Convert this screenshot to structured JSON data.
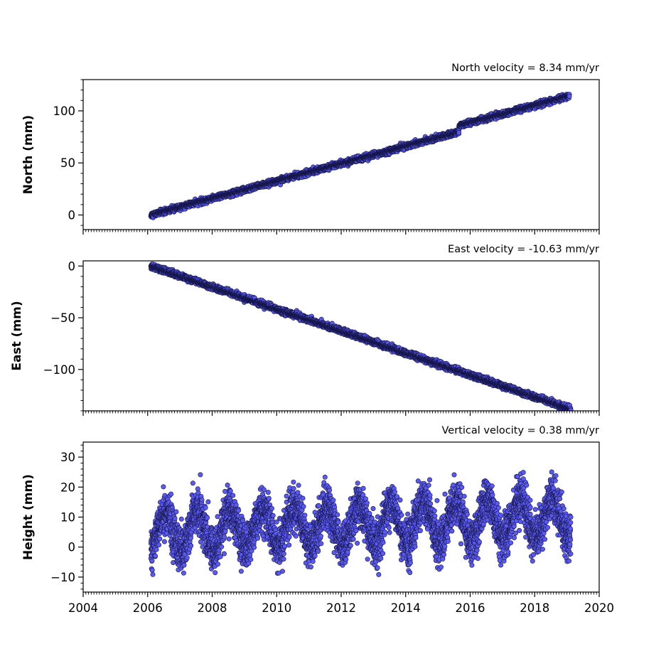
{
  "chart_data": [
    {
      "type": "scatter",
      "ylabel": "North (mm)",
      "annotation": "North velocity = 8.34 mm/yr",
      "xlim": [
        2004,
        2020
      ],
      "ylim": [
        -14,
        130
      ],
      "yticks": [
        0,
        50,
        100
      ],
      "ytick_labels": [
        "0",
        "50",
        "100"
      ],
      "show_x_tick_labels": false,
      "model": {
        "start": 2006.1,
        "end": 2019.08,
        "velocity": 8.34,
        "intercept": 0,
        "offset_epoch": 2015.65,
        "offset": 6,
        "noise": 1.2,
        "seasonal": 0,
        "outlier_rate": 0,
        "outlier_amp": 0,
        "description": "linear trend with coseismic-like jump near 2015.65"
      }
    },
    {
      "type": "scatter",
      "ylabel": "East (mm)",
      "annotation": "East velocity = -10.63 mm/yr",
      "xlim": [
        2004,
        2020
      ],
      "ylim": [
        -140,
        5
      ],
      "yticks": [
        0,
        -50,
        -100
      ],
      "ytick_labels": [
        "0",
        "−50",
        "−100"
      ],
      "show_x_tick_labels": false,
      "model": {
        "start": 2006.1,
        "end": 2019.12,
        "velocity": -10.63,
        "intercept": 0,
        "offset_epoch": null,
        "offset": 0,
        "noise": 1.3,
        "seasonal": 0,
        "outlier_rate": 0,
        "outlier_amp": 0,
        "description": "steady linear decline"
      }
    },
    {
      "type": "scatter",
      "ylabel": "Height (mm)",
      "annotation": "Vertical velocity = 0.38 mm/yr",
      "xlim": [
        2004,
        2020
      ],
      "ylim": [
        -15,
        35
      ],
      "yticks": [
        -10,
        0,
        10,
        20,
        30
      ],
      "ytick_labels": [
        "−10",
        "0",
        "10",
        "20",
        "30"
      ],
      "show_x_tick_labels": true,
      "xticks": [
        2004,
        2006,
        2008,
        2010,
        2012,
        2014,
        2016,
        2018,
        2020
      ],
      "xtick_labels": [
        "2004",
        "2006",
        "2008",
        "2010",
        "2012",
        "2014",
        "2016",
        "2018",
        "2020"
      ],
      "model": {
        "start": 2006.1,
        "end": 2019.12,
        "velocity": 0.38,
        "intercept": 5.0,
        "offset_epoch": null,
        "offset": 0,
        "noise": 3.6,
        "seasonal": 6.5,
        "outlier_rate": 0.01,
        "outlier_amp": 8,
        "description": "annual oscillation about a near-zero trend, daily positions"
      }
    }
  ],
  "style": {
    "marker_fill": "#5a5af0",
    "marker_edge": "#16164a",
    "axis_color": "#000000"
  }
}
